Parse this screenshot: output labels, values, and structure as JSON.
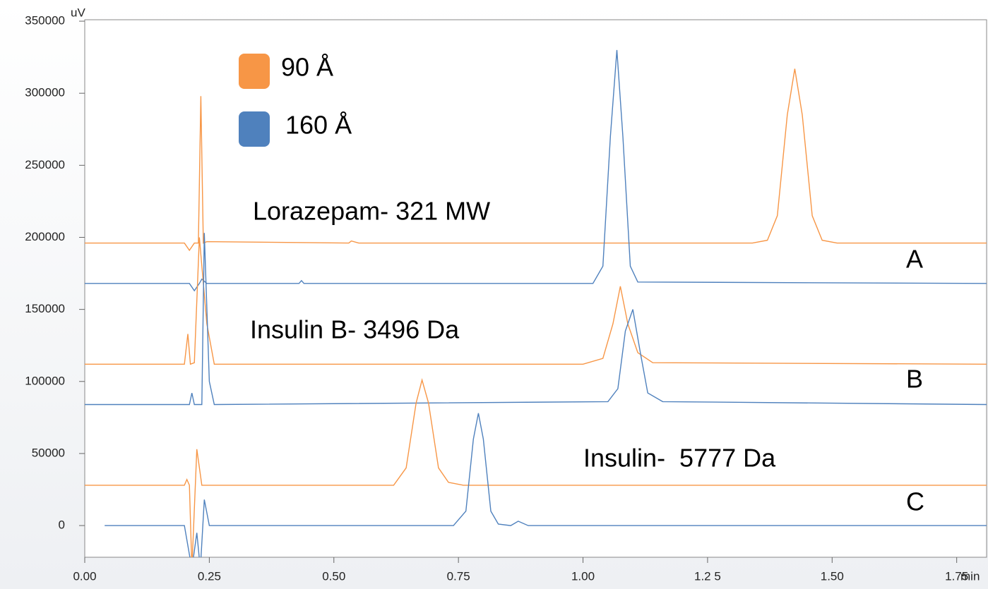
{
  "chart_data": {
    "type": "line",
    "x_unit": "min",
    "y_unit": "uV",
    "xlim": [
      0,
      1.81
    ],
    "ylim": [
      -22000,
      351000
    ],
    "xticks": [
      {
        "value": 0,
        "label": "0.00"
      },
      {
        "value": 0.25,
        "label": "0.25"
      },
      {
        "value": 0.5,
        "label": "0.50"
      },
      {
        "value": 0.75,
        "label": "0.75"
      },
      {
        "value": 1,
        "label": "1.00"
      },
      {
        "value": 1.25,
        "label": "1.2 5"
      },
      {
        "value": 1.5,
        "label": "1.50"
      },
      {
        "value": 1.75,
        "label": "1.75"
      }
    ],
    "yticks": [
      0,
      50000,
      100000,
      150000,
      200000,
      250000,
      300000,
      350000
    ],
    "legend": [
      {
        "name": "90 Å",
        "color": "#f79646"
      },
      {
        "name": "160 Å",
        "color": "#4f81bd"
      }
    ],
    "annotations": [
      "Lorazepam- 321 MW",
      "Insulin B- 3496 Da",
      "Insulin-  5777 Da",
      "A",
      "B",
      "C"
    ],
    "series": [
      {
        "color": "#f79646",
        "x": [
          0,
          0.2,
          0.21,
          0.22,
          0.228,
          0.233,
          0.238,
          0.245,
          0.53,
          0.535,
          0.55,
          1.34,
          1.37,
          1.39,
          1.41,
          1.425,
          1.44,
          1.46,
          1.48,
          1.51,
          1.81
        ],
        "values": [
          196000,
          196000,
          191000,
          196000,
          196000,
          298000,
          196000,
          197000,
          196000,
          197500,
          196000,
          196000,
          198000,
          215000,
          285000,
          317000,
          285000,
          215000,
          198000,
          196000,
          196000
        ]
      },
      {
        "color": "#4f81bd",
        "x": [
          0,
          0.21,
          0.22,
          0.23,
          0.235,
          0.245,
          0.43,
          0.435,
          0.44,
          1.02,
          1.04,
          1.055,
          1.068,
          1.08,
          1.095,
          1.11,
          1.81
        ],
        "values": [
          168000,
          168000,
          163000,
          168000,
          171000,
          168000,
          168000,
          170000,
          168000,
          168000,
          180000,
          270000,
          330000,
          270000,
          180000,
          169000,
          168000
        ]
      },
      {
        "color": "#f79646",
        "x": [
          0,
          0.2,
          0.207,
          0.212,
          0.22,
          0.23,
          0.245,
          0.26,
          1.0,
          1.04,
          1.06,
          1.075,
          1.09,
          1.11,
          1.14,
          1.81
        ],
        "values": [
          112000,
          112000,
          133000,
          112000,
          113000,
          200000,
          140000,
          112000,
          112000,
          116000,
          140000,
          166000,
          140000,
          120000,
          113000,
          112000
        ]
      },
      {
        "color": "#4f81bd",
        "x": [
          0,
          0.21,
          0.215,
          0.22,
          0.235,
          0.24,
          0.25,
          0.26,
          1.05,
          1.07,
          1.085,
          1.1,
          1.115,
          1.13,
          1.16,
          1.81
        ],
        "values": [
          84000,
          84000,
          92000,
          84000,
          84000,
          203000,
          100000,
          84000,
          86000,
          95000,
          135000,
          150000,
          120000,
          92000,
          86000,
          84000
        ]
      },
      {
        "color": "#f79646",
        "x": [
          0,
          0.2,
          0.205,
          0.21,
          0.215,
          0.225,
          0.235,
          0.62,
          0.645,
          0.665,
          0.677,
          0.69,
          0.71,
          0.73,
          0.76,
          1.81
        ],
        "values": [
          28000,
          28000,
          32000,
          28000,
          -30000,
          53000,
          28000,
          28000,
          40000,
          85000,
          101000,
          85000,
          40000,
          30000,
          28000,
          28000
        ]
      },
      {
        "color": "#4f81bd",
        "x": [
          0.04,
          0.2,
          0.215,
          0.225,
          0.232,
          0.24,
          0.25,
          0.74,
          0.765,
          0.78,
          0.79,
          0.8,
          0.815,
          0.83,
          0.855,
          0.87,
          0.89,
          1.81
        ],
        "values": [
          0,
          0,
          -30000,
          -5000,
          -30000,
          18000,
          0,
          0,
          10000,
          60000,
          78000,
          60000,
          10000,
          1000,
          0,
          3000,
          0,
          0
        ]
      }
    ]
  }
}
